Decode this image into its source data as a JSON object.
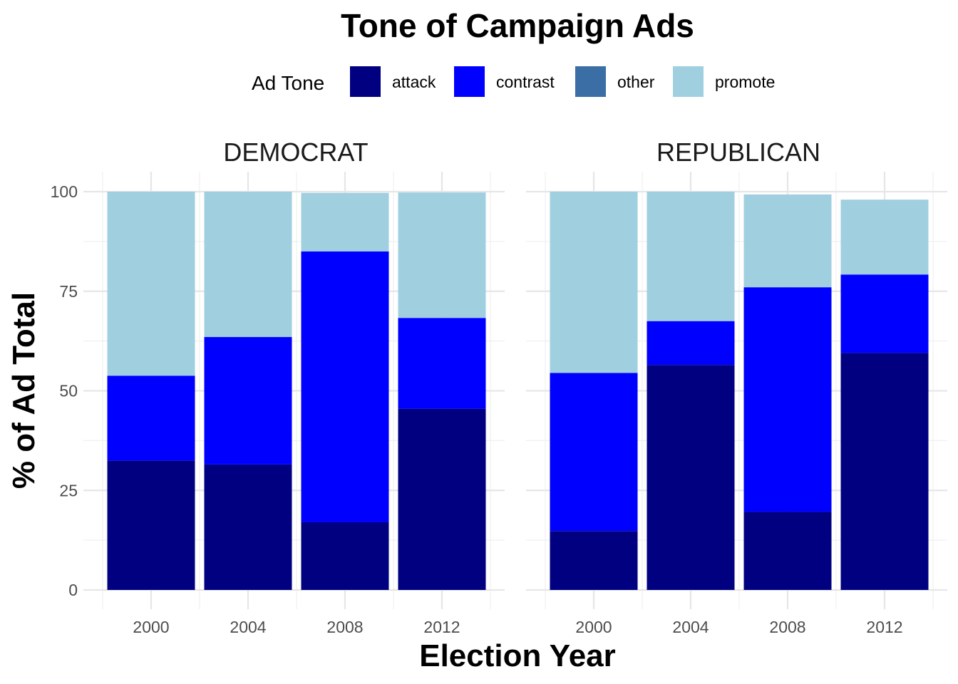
{
  "chart_data": {
    "type": "bar",
    "stacked": true,
    "title": "Tone of Campaign Ads",
    "xlabel": "Election Year",
    "ylabel": "% of Ad Total",
    "ylim": [
      0,
      100
    ],
    "yticks": [
      "0",
      "25",
      "50",
      "75",
      "100"
    ],
    "grid": true,
    "legend": {
      "title": "Ad Tone",
      "position": "top",
      "entries": [
        {
          "name": "attack",
          "color": "#000080"
        },
        {
          "name": "contrast",
          "color": "#0000FF"
        },
        {
          "name": "other",
          "color": "#3A6EA5"
        },
        {
          "name": "promote",
          "color": "#A0CFE0"
        }
      ]
    },
    "categories": [
      "2000",
      "2004",
      "2008",
      "2012"
    ],
    "panels": [
      {
        "label": "DEMOCRAT",
        "series": [
          {
            "name": "attack",
            "values": [
              32.5,
              31.5,
              17,
              45.5
            ]
          },
          {
            "name": "contrast",
            "values": [
              21.3,
              32,
              68,
              22.8
            ]
          },
          {
            "name": "other",
            "values": [
              0,
              0,
              0,
              0
            ]
          },
          {
            "name": "promote",
            "values": [
              46.2,
              36.5,
              14.7,
              31.5
            ]
          }
        ]
      },
      {
        "label": "REPUBLICAN",
        "series": [
          {
            "name": "attack",
            "values": [
              14.8,
              56.5,
              19.6,
              59.5
            ]
          },
          {
            "name": "contrast",
            "values": [
              39.7,
              11,
              56.4,
              19.7
            ]
          },
          {
            "name": "other",
            "values": [
              0,
              0,
              0,
              0
            ]
          },
          {
            "name": "promote",
            "values": [
              45.5,
              32.5,
              23.3,
              18.8
            ]
          }
        ]
      }
    ]
  }
}
